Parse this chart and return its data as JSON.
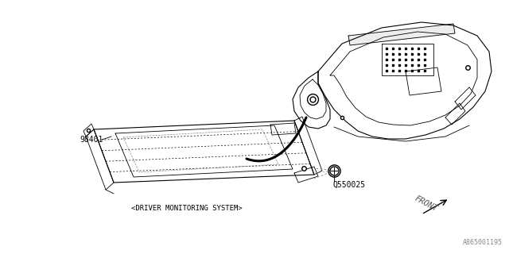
{
  "bg_color": "#ffffff",
  "diagram_id": "A865001195",
  "part_label_98401": "98401",
  "part_label_0550025": "Q550025",
  "system_label": "<DRIVER MONITORING SYSTEM>",
  "front_label": "FRONT",
  "line_color": "#000000",
  "dashed_color": "#888888",
  "light_color": "#cccccc"
}
